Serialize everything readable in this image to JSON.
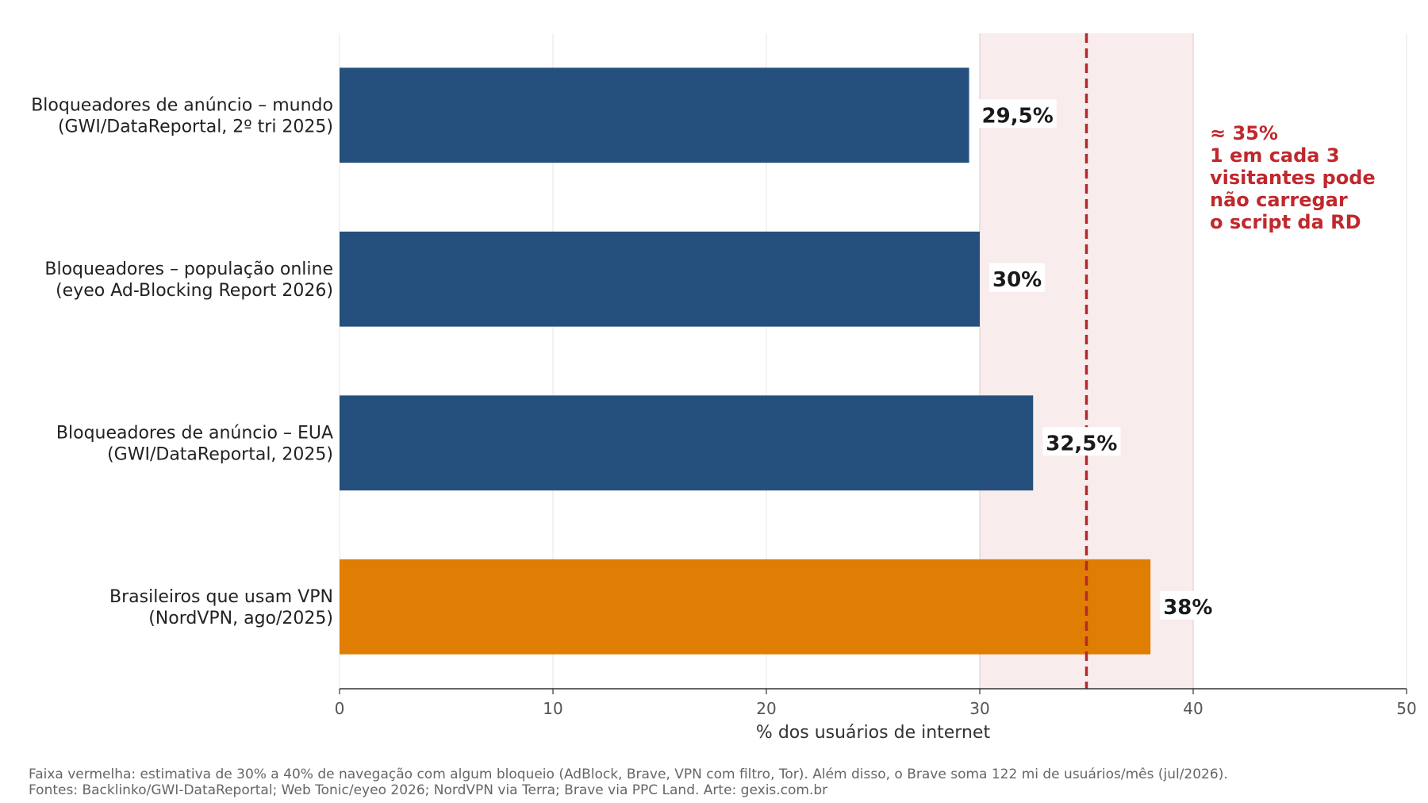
{
  "chart_data": {
    "type": "bar",
    "orientation": "horizontal",
    "categories": [
      [
        "Bloqueadores de anúncio – mundo",
        "(GWI/DataReportal, 2º tri 2025)"
      ],
      [
        "Bloqueadores – população online",
        "(eyeo Ad-Blocking Report 2026)"
      ],
      [
        "Bloqueadores de anúncio – EUA",
        "(GWI/DataReportal, 2025)"
      ],
      [
        "Brasileiros que usam VPN",
        "(NordVPN, ago/2025)"
      ]
    ],
    "values": [
      29.5,
      30,
      32.5,
      38
    ],
    "value_labels": [
      "29,5%",
      "30%",
      "32,5%",
      "38%"
    ],
    "bar_colors": [
      "#224e7b",
      "#224e7b",
      "#224e7b",
      "#e07b00"
    ],
    "xlabel": "% dos usuários de internet",
    "xlim": [
      0,
      50
    ],
    "xticks": [
      0,
      10,
      20,
      30,
      40,
      50
    ],
    "grid": true,
    "band": {
      "from": 30,
      "to": 40,
      "color": "#f9eced"
    },
    "reference_line": {
      "value": 35,
      "color": "#b5282d",
      "style": "dashed"
    },
    "annotation": [
      "≈ 35%",
      "1 em cada 3",
      "visitantes pode",
      "não carregar",
      "o script da RD"
    ]
  },
  "footer": {
    "line1": "Faixa vermelha: estimativa de 30% a 40% de navegação com algum bloqueio (AdBlock, Brave, VPN com filtro, Tor). Além disso, o Brave soma 122 mi de usuários/mês (jul/2026).",
    "line2": "Fontes: Backlinko/GWI-DataReportal; Web Tonic/eyeo 2026; NordVPN via Terra; Brave via PPC Land. Arte: gexis.com.br"
  }
}
